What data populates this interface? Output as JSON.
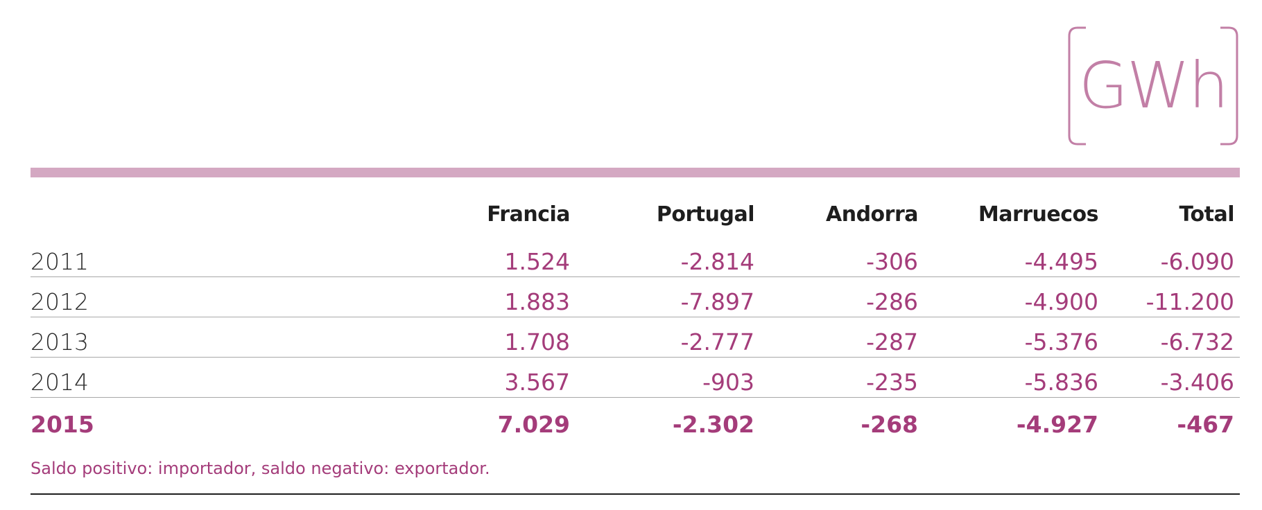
{
  "unit": "GWh",
  "colors": {
    "accent": "#a43c7a",
    "bar": "#d4a8c2",
    "unit_bracket": "#c27fa6",
    "text": "#1e1e1e"
  },
  "chart_data": {
    "type": "table",
    "columns": [
      "Francia",
      "Portugal",
      "Andorra",
      "Marruecos",
      "Total"
    ],
    "rows": [
      {
        "year": "2011",
        "values": [
          "1.524",
          "-2.814",
          "-306",
          "-4.495",
          "-6.090"
        ]
      },
      {
        "year": "2012",
        "values": [
          "1.883",
          "-7.897",
          "-286",
          "-4.900",
          "-11.200"
        ]
      },
      {
        "year": "2013",
        "values": [
          "1.708",
          "-2.777",
          "-287",
          "-5.376",
          "-6.732"
        ]
      },
      {
        "year": "2014",
        "values": [
          "3.567",
          "-903",
          "-235",
          "-5.836",
          "-3.406"
        ]
      },
      {
        "year": "2015",
        "values": [
          "7.029",
          "-2.302",
          "-268",
          "-4.927",
          "-467"
        ],
        "highlight": true
      }
    ]
  },
  "footnote": "Saldo positivo: importador, saldo negativo: exportador."
}
